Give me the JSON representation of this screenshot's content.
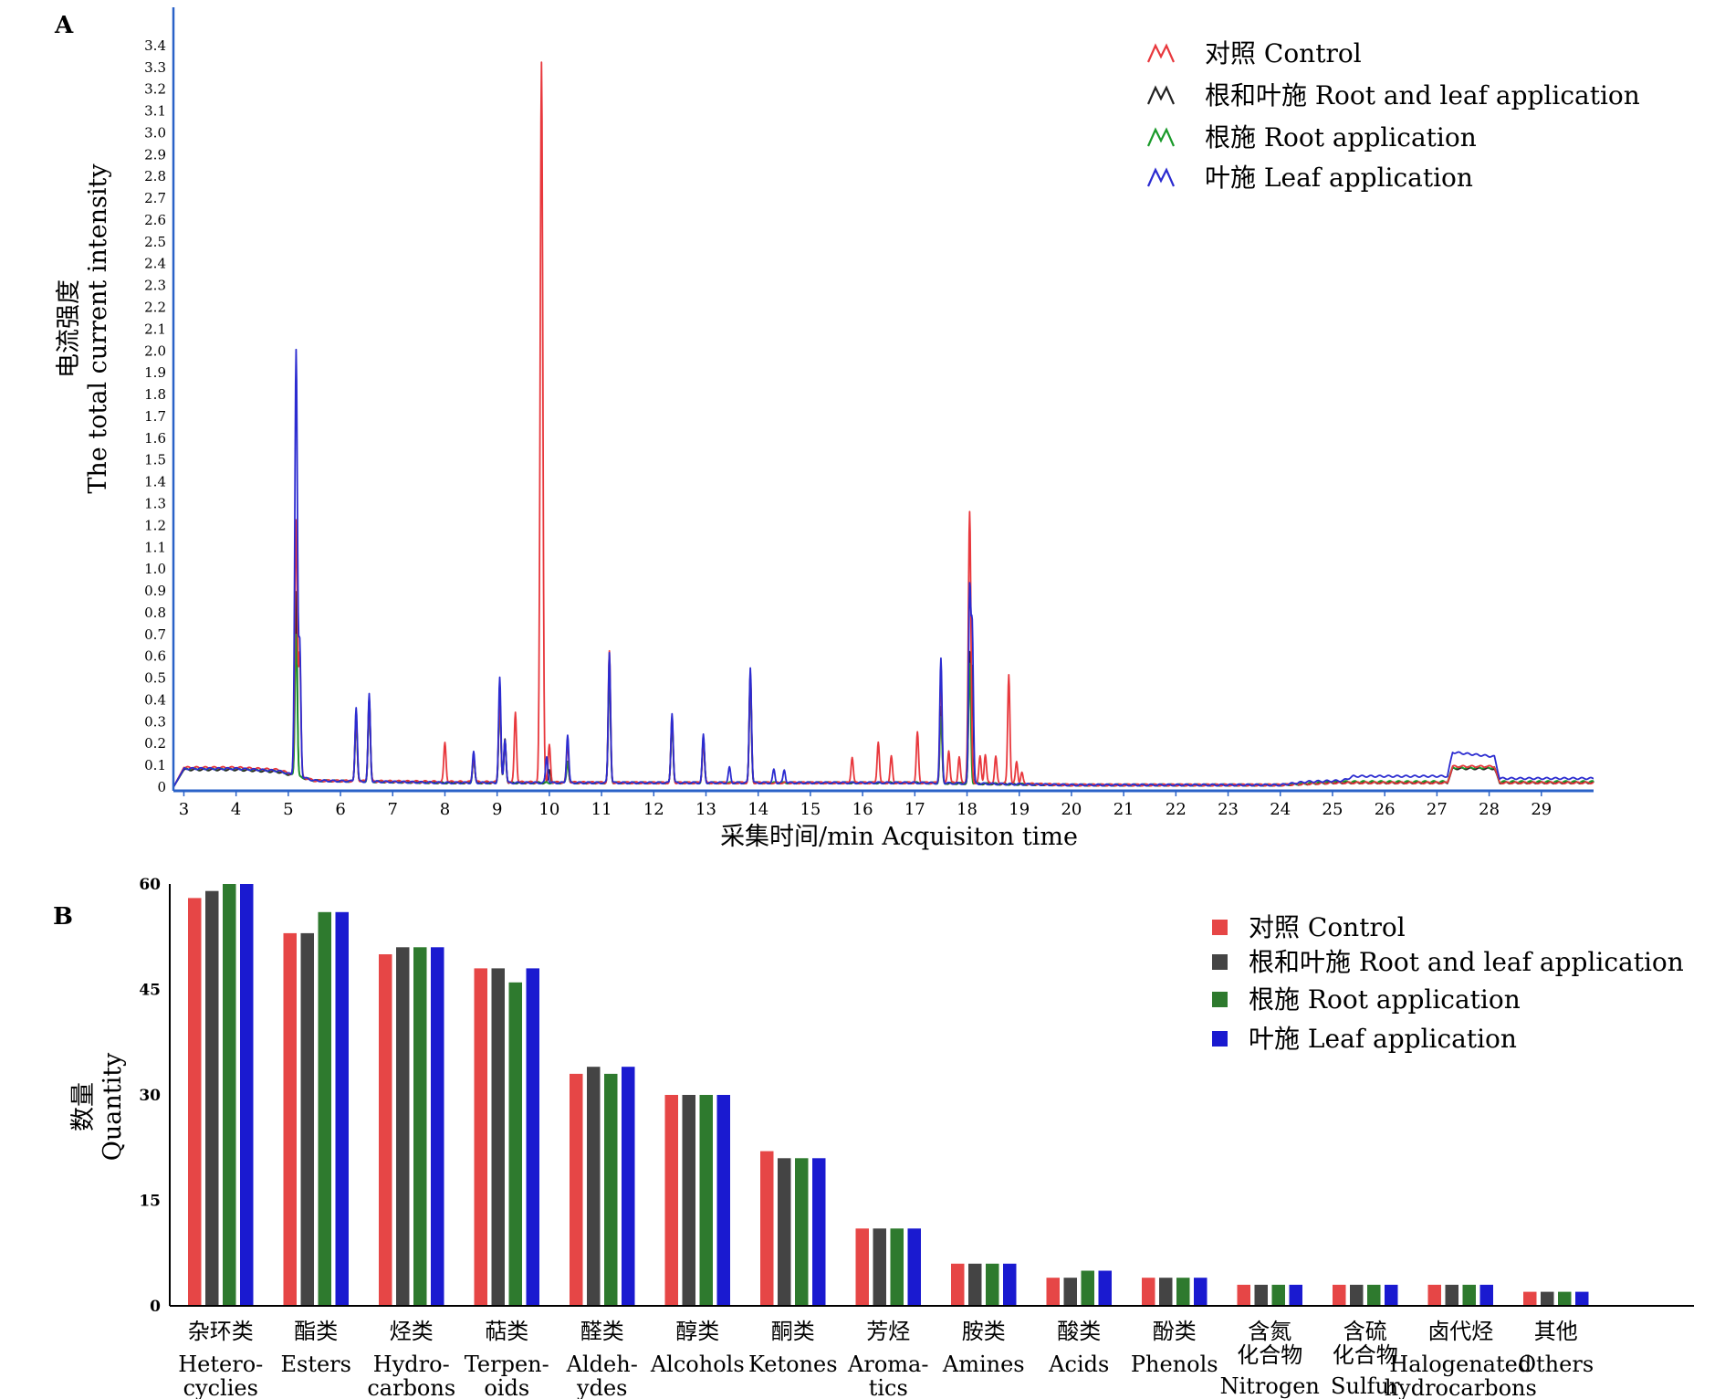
{
  "chart_data": [
    {
      "type": "line",
      "panel_label": "A",
      "xlabel": "采集时间/min Acquisiton time",
      "ylabel_cn": "电流强度",
      "ylabel_en": "The total current intensity",
      "x_ticks": [
        "3",
        "4",
        "5",
        "6",
        "7",
        "8",
        "9",
        "10",
        "11",
        "12",
        "13",
        "14",
        "15",
        "16",
        "17",
        "18",
        "19",
        "20",
        "21",
        "22",
        "23",
        "24",
        "25",
        "26",
        "27",
        "28",
        "29"
      ],
      "y_ticks": [
        "0",
        "0.1",
        "0.2",
        "0.3",
        "0.4",
        "0.5",
        "0.6",
        "0.7",
        "0.8",
        "0.9",
        "1.0",
        "1.1",
        "1.2",
        "1.3",
        "1.4",
        "1.5",
        "1.6",
        "1.7",
        "1.8",
        "1.9",
        "2.0",
        "2.1",
        "2.2",
        "2.3",
        "2.4",
        "2.5",
        "2.6",
        "2.7",
        "2.8",
        "2.9",
        "3.0",
        "3.1",
        "3.2",
        "3.3",
        "3.4"
      ],
      "ylim": [
        0,
        3.5
      ],
      "xlim": [
        2.8,
        30
      ],
      "legend_position": "top-right",
      "series": [
        {
          "name": "对照 Control",
          "color": "#e8383d",
          "baseline": [
            [
              2.8,
              0
            ],
            [
              3.0,
              0.09
            ],
            [
              4.0,
              0.09
            ],
            [
              4.8,
              0.08
            ],
            [
              5.5,
              0.03
            ],
            [
              8,
              0.025
            ],
            [
              12,
              0.02
            ],
            [
              17,
              0.02
            ],
            [
              18.5,
              0.02
            ],
            [
              20,
              0.01
            ],
            [
              24,
              0.01
            ],
            [
              25,
              0.02
            ],
            [
              27.2,
              0.02
            ],
            [
              27.3,
              0.095
            ],
            [
              28.1,
              0.095
            ],
            [
              28.2,
              0.02
            ],
            [
              30,
              0.02
            ]
          ],
          "peaks": [
            [
              5.15,
              1.17
            ],
            [
              5.22,
              0.55
            ],
            [
              6.3,
              0.3
            ],
            [
              6.55,
              0.38
            ],
            [
              8.0,
              0.18
            ],
            [
              8.55,
              0.12
            ],
            [
              9.05,
              0.4
            ],
            [
              9.15,
              0.18
            ],
            [
              9.35,
              0.32
            ],
            [
              9.85,
              3.3
            ],
            [
              10.0,
              0.17
            ],
            [
              10.35,
              0.18
            ],
            [
              11.15,
              0.6
            ],
            [
              12.35,
              0.3
            ],
            [
              12.95,
              0.2
            ],
            [
              13.85,
              0.5
            ],
            [
              15.8,
              0.12
            ],
            [
              16.3,
              0.19
            ],
            [
              16.55,
              0.12
            ],
            [
              17.05,
              0.23
            ],
            [
              17.5,
              0.5
            ],
            [
              17.65,
              0.15
            ],
            [
              17.85,
              0.12
            ],
            [
              18.05,
              1.24
            ],
            [
              18.25,
              0.12
            ],
            [
              18.35,
              0.13
            ],
            [
              18.55,
              0.12
            ],
            [
              18.8,
              0.5
            ],
            [
              18.95,
              0.1
            ],
            [
              19.05,
              0.05
            ]
          ]
        },
        {
          "name": "根和叶施 Root and leaf application",
          "color": "#222222",
          "baseline": [
            [
              2.8,
              0
            ],
            [
              3.0,
              0.08
            ],
            [
              4.0,
              0.08
            ],
            [
              4.8,
              0.07
            ],
            [
              5.5,
              0.03
            ],
            [
              8,
              0.02
            ],
            [
              12,
              0.02
            ],
            [
              17,
              0.02
            ],
            [
              18.5,
              0.015
            ],
            [
              20,
              0.01
            ],
            [
              24,
              0.01
            ],
            [
              25,
              0.02
            ],
            [
              27.2,
              0.02
            ],
            [
              27.3,
              0.085
            ],
            [
              28.1,
              0.085
            ],
            [
              28.2,
              0.02
            ],
            [
              30,
              0.02
            ]
          ],
          "peaks": [
            [
              5.15,
              0.85
            ],
            [
              6.3,
              0.3
            ],
            [
              6.55,
              0.38
            ],
            [
              8.55,
              0.12
            ],
            [
              9.05,
              0.4
            ],
            [
              9.15,
              0.2
            ],
            [
              10.0,
              0.06
            ],
            [
              10.35,
              0.1
            ],
            [
              11.15,
              0.52
            ],
            [
              12.35,
              0.28
            ],
            [
              12.95,
              0.2
            ],
            [
              13.85,
              0.48
            ],
            [
              17.5,
              0.35
            ],
            [
              18.05,
              0.57
            ],
            [
              18.1,
              0.5
            ]
          ]
        },
        {
          "name": "根施 Root application",
          "color": "#1a9a2a",
          "baseline": [
            [
              2.8,
              0
            ],
            [
              3.0,
              0.085
            ],
            [
              4.0,
              0.085
            ],
            [
              4.8,
              0.075
            ],
            [
              5.5,
              0.03
            ],
            [
              8,
              0.02
            ],
            [
              12,
              0.02
            ],
            [
              17,
              0.02
            ],
            [
              18.5,
              0.015
            ],
            [
              20,
              0.01
            ],
            [
              24,
              0.01
            ],
            [
              25,
              0.025
            ],
            [
              27.2,
              0.025
            ],
            [
              27.3,
              0.09
            ],
            [
              28.1,
              0.09
            ],
            [
              28.2,
              0.025
            ],
            [
              30,
              0.025
            ]
          ],
          "peaks": [
            [
              5.15,
              0.65
            ],
            [
              6.3,
              0.28
            ],
            [
              6.55,
              0.36
            ],
            [
              8.55,
              0.12
            ],
            [
              9.05,
              0.38
            ],
            [
              9.15,
              0.18
            ],
            [
              10.35,
              0.1
            ],
            [
              11.15,
              0.52
            ],
            [
              12.35,
              0.28
            ],
            [
              12.95,
              0.2
            ],
            [
              13.85,
              0.48
            ],
            [
              17.5,
              0.3
            ],
            [
              18.05,
              0.55
            ]
          ]
        },
        {
          "name": "叶施 Leaf application",
          "color": "#2b2bd0",
          "baseline": [
            [
              2.8,
              0
            ],
            [
              3.0,
              0.085
            ],
            [
              4.0,
              0.085
            ],
            [
              4.8,
              0.075
            ],
            [
              5.5,
              0.03
            ],
            [
              8,
              0.02
            ],
            [
              12,
              0.02
            ],
            [
              17,
              0.02
            ],
            [
              18.5,
              0.015
            ],
            [
              20,
              0.01
            ],
            [
              24,
              0.01
            ],
            [
              24.5,
              0.025
            ],
            [
              25.2,
              0.03
            ],
            [
              25.4,
              0.05
            ],
            [
              27.2,
              0.05
            ],
            [
              27.3,
              0.16
            ],
            [
              28.1,
              0.14
            ],
            [
              28.2,
              0.04
            ],
            [
              30,
              0.04
            ]
          ],
          "peaks": [
            [
              5.15,
              1.95
            ],
            [
              5.22,
              0.6
            ],
            [
              6.3,
              0.34
            ],
            [
              6.55,
              0.4
            ],
            [
              8.55,
              0.14
            ],
            [
              9.05,
              0.48
            ],
            [
              9.15,
              0.2
            ],
            [
              9.95,
              0.12
            ],
            [
              10.35,
              0.22
            ],
            [
              11.15,
              0.6
            ],
            [
              12.35,
              0.32
            ],
            [
              12.95,
              0.22
            ],
            [
              13.45,
              0.07
            ],
            [
              13.85,
              0.53
            ],
            [
              14.3,
              0.06
            ],
            [
              14.5,
              0.06
            ],
            [
              17.5,
              0.57
            ],
            [
              18.05,
              0.88
            ],
            [
              18.1,
              0.7
            ]
          ]
        }
      ]
    },
    {
      "type": "bar",
      "panel_label": "B",
      "ylabel_cn": "数量",
      "ylabel_en": "Quantity",
      "ylim": [
        0,
        60
      ],
      "y_ticks": [
        "0",
        "15",
        "30",
        "45",
        "60"
      ],
      "legend_position": "top-right",
      "categories_cn": [
        "杂环类",
        "酯类",
        "烃类",
        "萜类",
        "醛类",
        "醇类",
        "酮类",
        "芳烃",
        "胺类",
        "酸类",
        "酚类",
        "含氮\n化合物",
        "含硫\n化合物",
        "卤代烃",
        "其他"
      ],
      "categories_en": [
        "Hetero-\ncyclies",
        "Esters",
        "Hydro-\ncarbons",
        "Terpen-\noids",
        "Aldeh-\nydes",
        "Alcohols",
        "Ketones",
        "Aroma-\ntics",
        "Amines",
        "Acids",
        "Phenols",
        "Nitrogen\ncompounds",
        "Sulfur\ncompounds",
        "Halogenated\nhydrocarbons",
        "Others"
      ],
      "series": [
        {
          "name": "对照 Control",
          "color": "#e64646",
          "values": [
            58,
            53,
            50,
            48,
            33,
            30,
            22,
            11,
            6,
            4,
            4,
            3,
            3,
            3,
            2
          ]
        },
        {
          "name": "根和叶施 Root and leaf application",
          "color": "#444444",
          "values": [
            59,
            53,
            51,
            48,
            34,
            30,
            21,
            11,
            6,
            4,
            4,
            3,
            3,
            3,
            2
          ]
        },
        {
          "name": "根施 Root application",
          "color": "#2e7a2e",
          "values": [
            60,
            56,
            51,
            46,
            33,
            30,
            21,
            11,
            6,
            5,
            4,
            3,
            3,
            3,
            2
          ]
        },
        {
          "name": "叶施 Leaf application",
          "color": "#1a1ad0",
          "values": [
            60,
            56,
            51,
            48,
            34,
            30,
            21,
            11,
            6,
            5,
            4,
            3,
            3,
            3,
            2
          ]
        }
      ]
    }
  ]
}
